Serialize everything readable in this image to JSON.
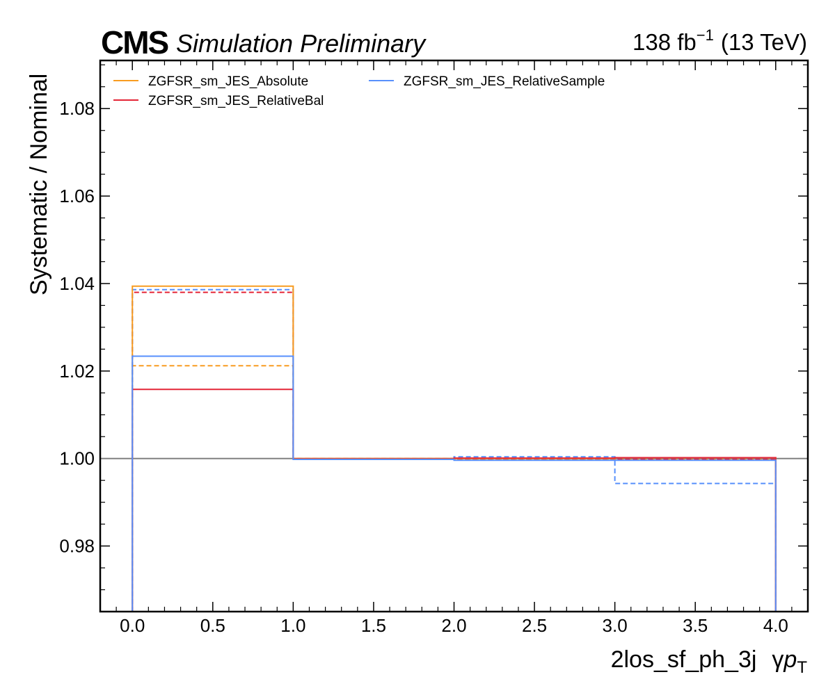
{
  "chart_data": {
    "type": "line",
    "title": "",
    "header": {
      "experiment": "CMS",
      "status": "Simulation Preliminary",
      "lumi_value": "138 fb",
      "lumi_exponent": "−1",
      "energy": "(13 TeV)"
    },
    "xlabel_main": "2los_sf_ph_3j",
    "xlabel_gamma": "γ",
    "xlabel_p": "p",
    "xlabel_sub": "T",
    "ylabel": "Systematic / Nominal",
    "xlim": [
      -0.2,
      4.2
    ],
    "ylim": [
      0.965,
      1.091
    ],
    "xticks": [
      0.0,
      0.5,
      1.0,
      1.5,
      2.0,
      2.5,
      3.0,
      3.5,
      4.0
    ],
    "xtick_labels": [
      "0.0",
      "0.5",
      "1.0",
      "1.5",
      "2.0",
      "2.5",
      "3.0",
      "3.5",
      "4.0"
    ],
    "yticks": [
      0.98,
      1.0,
      1.02,
      1.04,
      1.06,
      1.08
    ],
    "ytick_labels": [
      "0.98",
      "1.00",
      "1.02",
      "1.04",
      "1.06",
      "1.08"
    ],
    "bin_edges": [
      0,
      1,
      2,
      3,
      4
    ],
    "reference_line": 1.0,
    "reference_color": "#808080",
    "grid": false,
    "legend_position": "top-left",
    "series": [
      {
        "name": "ZGFSR_sm_JES_Absolute",
        "color": "#f89c20",
        "variation": "up",
        "values": [
          1.0394,
          1.0,
          1.0,
          1.0002
        ]
      },
      {
        "name": "ZGFSR_sm_JES_Absolute",
        "color": "#f89c20",
        "variation": "down",
        "values": [
          1.0212,
          1.0,
          0.9998,
          0.9998
        ]
      },
      {
        "name": "ZGFSR_sm_JES_RelativeBal",
        "color": "#e42536",
        "variation": "up",
        "values": [
          1.0158,
          0.9999,
          1.0001,
          1.0002
        ]
      },
      {
        "name": "ZGFSR_sm_JES_RelativeBal",
        "color": "#e42536",
        "variation": "down",
        "values": [
          1.038,
          1.0,
          0.9999,
          0.9998
        ]
      },
      {
        "name": "ZGFSR_sm_JES_RelativeSample",
        "color": "#5790fc",
        "variation": "up",
        "values": [
          1.0234,
          0.9998,
          0.9996,
          0.9996
        ]
      },
      {
        "name": "ZGFSR_sm_JES_RelativeSample",
        "color": "#5790fc",
        "variation": "down",
        "values": [
          1.0386,
          1.0,
          1.0004,
          0.9943
        ]
      }
    ],
    "legend": [
      {
        "name": "ZGFSR_sm_JES_Absolute",
        "color": "#f89c20"
      },
      {
        "name": "ZGFSR_sm_JES_RelativeBal",
        "color": "#e42536"
      },
      {
        "name": "ZGFSR_sm_JES_RelativeSample",
        "color": "#5790fc"
      }
    ]
  }
}
